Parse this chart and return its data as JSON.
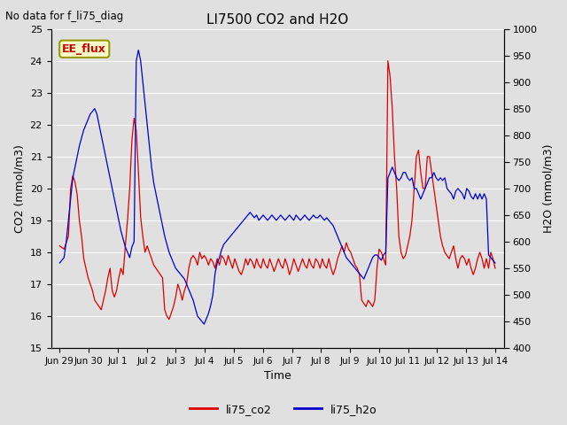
{
  "title": "LI7500 CO2 and H2O",
  "subtitle": "No data for f_li75_diag",
  "xlabel": "Time",
  "ylabel_left": "CO2 (mmol/m3)",
  "ylabel_right": "H2O (mmol/m3)",
  "ylim_left": [
    15.0,
    25.0
  ],
  "ylim_right": [
    400,
    1000
  ],
  "yticks_left": [
    15.0,
    16.0,
    17.0,
    18.0,
    19.0,
    20.0,
    21.0,
    22.0,
    23.0,
    24.0,
    25.0
  ],
  "yticks_right": [
    400,
    450,
    500,
    550,
    600,
    650,
    700,
    750,
    800,
    850,
    900,
    950,
    1000
  ],
  "annotation_text": "EE_flux",
  "annotation_color": "#cc0000",
  "annotation_bg": "#ffffcc",
  "annotation_border": "#999900",
  "background_color": "#e0e0e0",
  "grid_color": "white",
  "color_co2": "#dd0000",
  "color_h2o": "#0000cc",
  "legend_co2": "li75_co2",
  "legend_h2o": "li75_h2o",
  "xtick_labels": [
    "Jun 29",
    "Jun 30",
    "Jul 1",
    "Jul 2",
    "Jul 3",
    "Jul 4",
    "Jul 5",
    "Jul 6",
    "Jul 7",
    "Jul 8",
    "Jul 9",
    "Jul 10",
    "Jul 11",
    "Jul 12",
    "Jul 13",
    "Jul 14"
  ],
  "co2_data": [
    18.2,
    18.15,
    18.1,
    18.3,
    18.5,
    20.0,
    20.4,
    20.2,
    19.8,
    19.0,
    18.5,
    17.8,
    17.5,
    17.2,
    17.0,
    16.8,
    16.5,
    16.4,
    16.3,
    16.2,
    16.5,
    16.8,
    17.2,
    17.5,
    16.8,
    16.6,
    16.8,
    17.2,
    17.5,
    17.3,
    18.2,
    19.0,
    20.0,
    21.5,
    22.2,
    21.8,
    20.5,
    19.1,
    18.5,
    18.0,
    18.2,
    18.0,
    17.8,
    17.6,
    17.5,
    17.4,
    17.3,
    17.2,
    16.2,
    16.0,
    15.9,
    16.1,
    16.3,
    16.6,
    17.0,
    16.8,
    16.5,
    16.8,
    17.0,
    17.5,
    17.8,
    17.9,
    17.8,
    17.6,
    18.0,
    17.8,
    17.9,
    17.8,
    17.6,
    17.8,
    17.7,
    17.5,
    17.8,
    17.6,
    17.9,
    17.8,
    17.6,
    17.9,
    17.7,
    17.5,
    17.8,
    17.6,
    17.4,
    17.3,
    17.5,
    17.8,
    17.6,
    17.8,
    17.7,
    17.5,
    17.8,
    17.6,
    17.5,
    17.8,
    17.6,
    17.5,
    17.8,
    17.6,
    17.4,
    17.6,
    17.8,
    17.6,
    17.5,
    17.8,
    17.6,
    17.3,
    17.5,
    17.8,
    17.6,
    17.4,
    17.6,
    17.8,
    17.6,
    17.5,
    17.8,
    17.6,
    17.5,
    17.8,
    17.7,
    17.5,
    17.8,
    17.6,
    17.5,
    17.8,
    17.5,
    17.3,
    17.5,
    17.8,
    18.0,
    18.2,
    18.0,
    18.3,
    18.1,
    18.0,
    17.8,
    17.6,
    17.5,
    17.3,
    16.5,
    16.4,
    16.3,
    16.5,
    16.4,
    16.3,
    16.5,
    17.5,
    18.1,
    18.0,
    17.8,
    17.6,
    24.0,
    23.5,
    22.5,
    21.0,
    20.0,
    18.5,
    18.0,
    17.8,
    17.9,
    18.2,
    18.5,
    19.0,
    20.0,
    21.0,
    21.2,
    20.5,
    20.0,
    20.0,
    21.0,
    21.0,
    20.5,
    20.0,
    19.5,
    19.0,
    18.5,
    18.2,
    18.0,
    17.9,
    17.8,
    18.0,
    18.2,
    17.8,
    17.5,
    17.8,
    17.9,
    17.8,
    17.6,
    17.8,
    17.5,
    17.3,
    17.5,
    17.8,
    18.0,
    17.8,
    17.5,
    17.8,
    17.5,
    18.0,
    17.8,
    17.5
  ],
  "h2o_data": [
    560,
    565,
    570,
    600,
    640,
    680,
    720,
    740,
    760,
    780,
    795,
    810,
    820,
    830,
    840,
    845,
    850,
    840,
    820,
    800,
    780,
    760,
    740,
    720,
    700,
    680,
    660,
    640,
    620,
    605,
    590,
    580,
    570,
    590,
    600,
    940,
    960,
    940,
    900,
    860,
    820,
    780,
    740,
    710,
    690,
    670,
    650,
    630,
    610,
    595,
    580,
    570,
    560,
    550,
    545,
    540,
    535,
    530,
    520,
    510,
    500,
    490,
    475,
    460,
    455,
    450,
    445,
    455,
    465,
    480,
    500,
    540,
    560,
    570,
    585,
    595,
    600,
    605,
    610,
    615,
    620,
    625,
    630,
    635,
    640,
    645,
    650,
    655,
    650,
    645,
    650,
    640,
    645,
    650,
    645,
    640,
    645,
    650,
    645,
    640,
    645,
    650,
    645,
    640,
    645,
    650,
    645,
    640,
    650,
    645,
    640,
    645,
    650,
    645,
    640,
    645,
    650,
    645,
    645,
    650,
    645,
    640,
    645,
    640,
    635,
    630,
    620,
    610,
    600,
    590,
    580,
    570,
    565,
    560,
    555,
    550,
    545,
    540,
    535,
    530,
    540,
    550,
    560,
    570,
    575,
    575,
    570,
    565,
    575,
    580,
    720,
    730,
    740,
    730,
    720,
    715,
    720,
    730,
    730,
    720,
    715,
    720,
    700,
    700,
    690,
    680,
    690,
    700,
    710,
    720,
    720,
    730,
    720,
    715,
    720,
    715,
    720,
    700,
    695,
    690,
    680,
    695,
    700,
    695,
    690,
    680,
    700,
    695,
    685,
    680,
    690,
    680,
    690,
    680,
    690,
    680,
    575,
    570,
    565,
    560
  ]
}
